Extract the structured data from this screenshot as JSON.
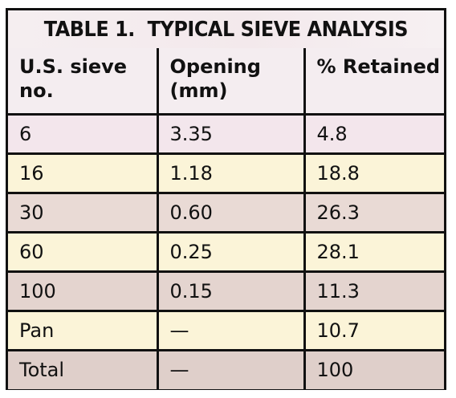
{
  "table": {
    "title": "TABLE 1.  TYPICAL SIEVE ANALYSIS",
    "headers": [
      "U.S. sieve no.",
      "Opening (mm)",
      "% Retained"
    ],
    "rows": [
      [
        "6",
        "3.35",
        "4.8"
      ],
      [
        "16",
        "1.18",
        "18.8"
      ],
      [
        "30",
        "0.60",
        "26.3"
      ],
      [
        "60",
        "0.25",
        "28.1"
      ],
      [
        "100",
        "0.15",
        "11.3"
      ],
      [
        "Pan",
        "—",
        "10.7"
      ],
      [
        "Total",
        "—",
        "100"
      ]
    ]
  }
}
